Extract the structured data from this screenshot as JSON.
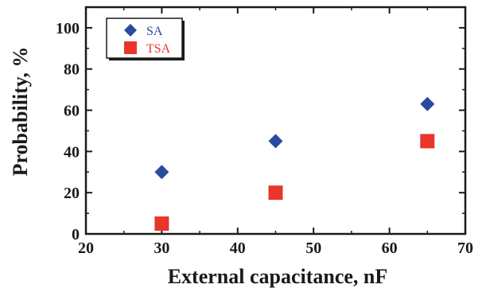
{
  "chart_data": {
    "type": "scatter",
    "xlabel": "External capacitance, nF",
    "ylabel": "Probability, %",
    "xlim": [
      20,
      70
    ],
    "ylim": [
      0,
      110
    ],
    "x_ticks": [
      20,
      30,
      40,
      50,
      60,
      70
    ],
    "y_ticks": [
      0,
      20,
      40,
      60,
      80,
      100
    ],
    "grid": false,
    "legend_position": "top-left",
    "series": [
      {
        "name": "SA",
        "marker": "diamond",
        "color": "#2a4a9e",
        "label_color": "#2a4a9e",
        "x": [
          30,
          45,
          65
        ],
        "y": [
          30,
          45,
          63
        ]
      },
      {
        "name": "TSA",
        "marker": "square",
        "color": "#e8362b",
        "label_color": "#e8362b",
        "x": [
          30,
          45,
          65
        ],
        "y": [
          5,
          20,
          45
        ]
      }
    ]
  }
}
